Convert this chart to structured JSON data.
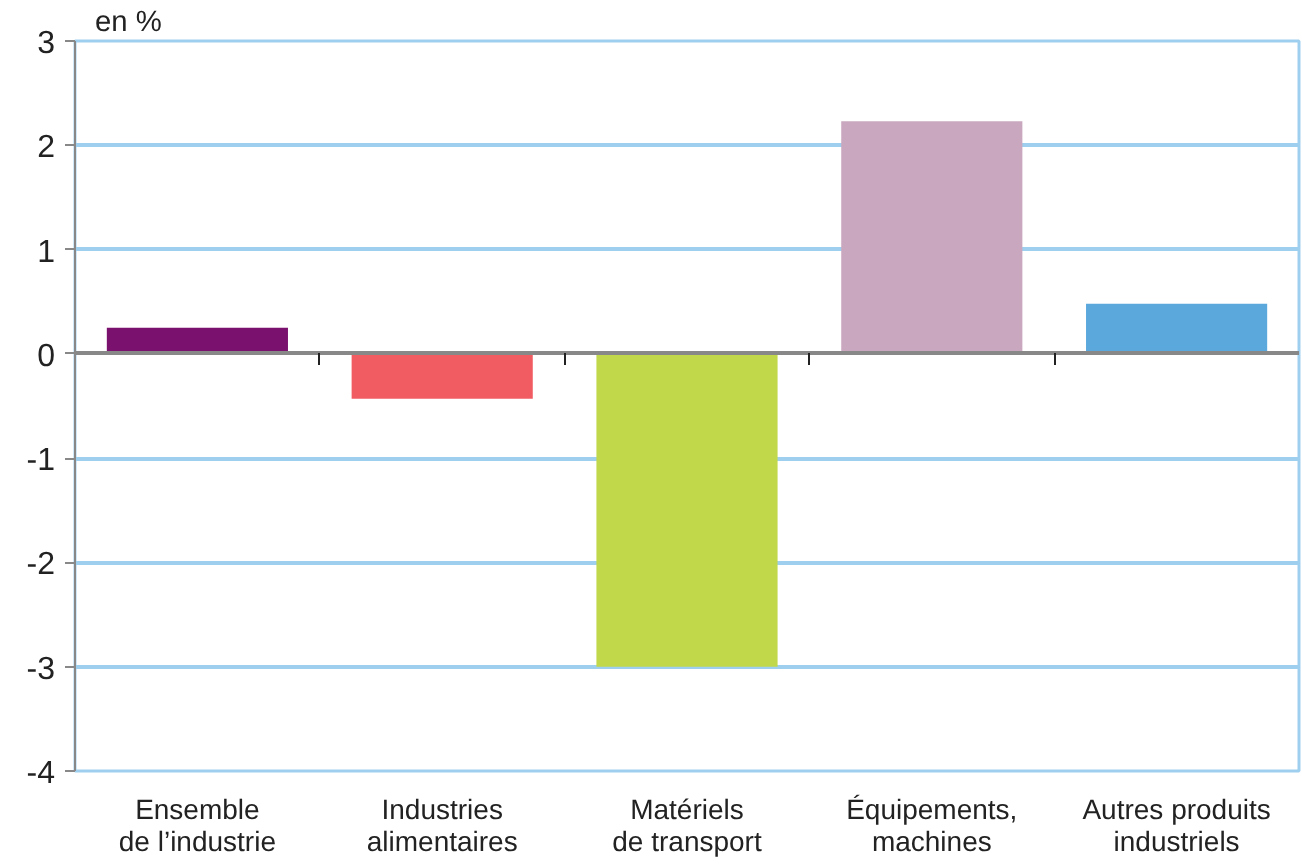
{
  "chart_data": {
    "type": "bar",
    "ylabel": "en %",
    "categories": [
      "Ensemble\nde l’industrie",
      "Industries\nalimentaires",
      "Matériels\nde transport",
      "Équipements,\nmachines",
      "Autres produits\nindustriels"
    ],
    "values": [
      0.25,
      -0.43,
      -3.0,
      2.23,
      0.48
    ],
    "colors": [
      "#7b116f",
      "#f15c63",
      "#c0d84a",
      "#c9a8bf",
      "#5ba8dc"
    ],
    "ylim": [
      -4,
      3
    ],
    "yticks": [
      -4,
      -3,
      -2,
      -1,
      0,
      1,
      2,
      3
    ],
    "grid": "y"
  }
}
